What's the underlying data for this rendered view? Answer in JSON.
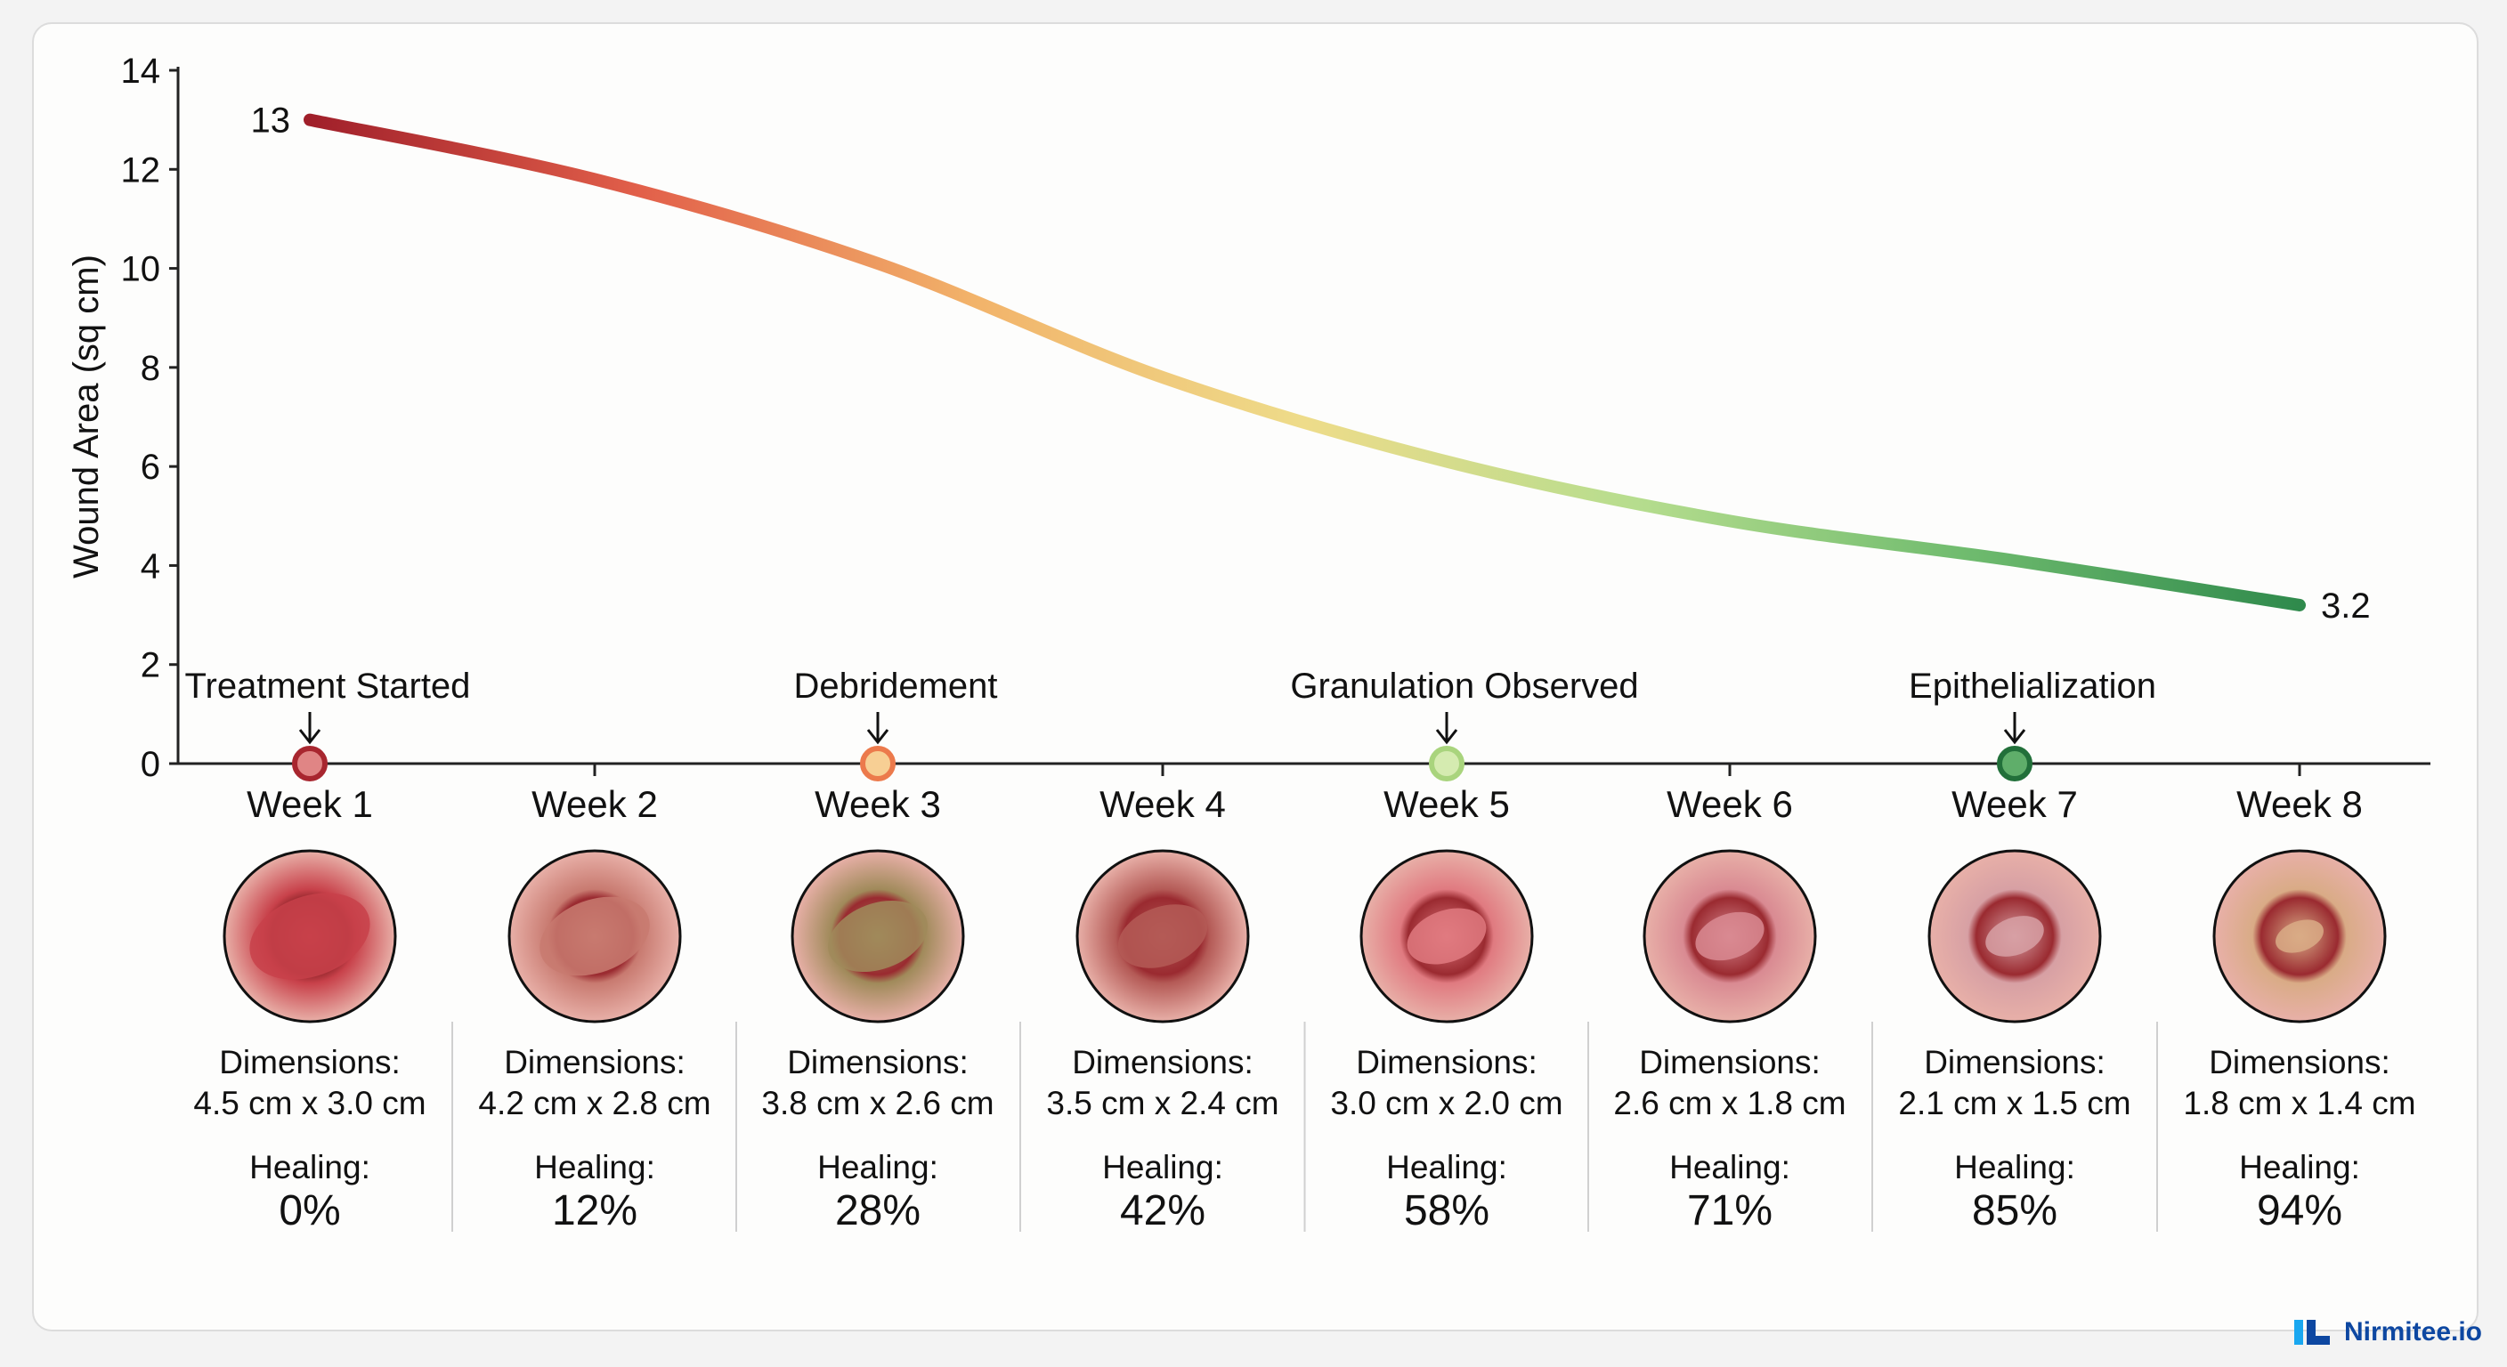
{
  "chart_data": {
    "type": "line",
    "ylabel": "Wound Area (sq cm)",
    "xlabel": "",
    "ylim": [
      0,
      14
    ],
    "yticks": [
      0,
      2,
      4,
      6,
      8,
      10,
      12,
      14
    ],
    "categories": [
      "Week 1",
      "Week 2",
      "Week 3",
      "Week 4",
      "Week 5",
      "Week 6",
      "Week 7",
      "Week 8"
    ],
    "values": [
      13,
      11.8,
      10.1,
      7.8,
      6.1,
      4.9,
      4.1,
      3.2
    ],
    "data_labels": [
      {
        "index": 0,
        "text": "13"
      },
      {
        "index": 7,
        "text": "3.2"
      }
    ],
    "gradient_colors": [
      "#a01f2a",
      "#e2604a",
      "#f2b36a",
      "#eedc8a",
      "#b6dd8e",
      "#6fbb6e",
      "#2f8a4c"
    ],
    "grid": false,
    "legend": "none",
    "annotations": [
      {
        "index": 0,
        "text": "Treatment Started",
        "marker_color": "#e08585",
        "marker_stroke": "#a8262f"
      },
      {
        "index": 2,
        "text": "Debridement",
        "marker_color": "#f7cf94",
        "marker_stroke": "#ec7a4c"
      },
      {
        "index": 4,
        "text": "Granulation Observed",
        "marker_color": "#d5ebb0",
        "marker_stroke": "#a9d47d"
      },
      {
        "index": 6,
        "text": "Epithelialization",
        "marker_color": "#5fae6a",
        "marker_stroke": "#22703a"
      }
    ],
    "details": [
      {
        "dimensions_label": "Dimensions:",
        "dimensions": "4.5 cm x 3.0 cm",
        "healing_label": "Healing:",
        "healing": "0%",
        "photo_color": "#c8414a"
      },
      {
        "dimensions_label": "Dimensions:",
        "dimensions": "4.2 cm x 2.8 cm",
        "healing_label": "Healing:",
        "healing": "12%",
        "photo_color": "#c87a70"
      },
      {
        "dimensions_label": "Dimensions:",
        "dimensions": "3.8 cm x 2.6 cm",
        "healing_label": "Healing:",
        "healing": "28%",
        "photo_color": "#a08a5a"
      },
      {
        "dimensions_label": "Dimensions:",
        "dimensions": "3.5 cm x 2.4 cm",
        "healing_label": "Healing:",
        "healing": "42%",
        "photo_color": "#b45a56"
      },
      {
        "dimensions_label": "Dimensions:",
        "dimensions": "3.0 cm x 2.0 cm",
        "healing_label": "Healing:",
        "healing": "58%",
        "photo_color": "#e07a80"
      },
      {
        "dimensions_label": "Dimensions:",
        "dimensions": "2.6 cm x 1.8 cm",
        "healing_label": "Healing:",
        "healing": "71%",
        "photo_color": "#d98a92"
      },
      {
        "dimensions_label": "Dimensions:",
        "dimensions": "2.1 cm x 1.5 cm",
        "healing_label": "Healing:",
        "healing": "85%",
        "photo_color": "#d7a0a4"
      },
      {
        "dimensions_label": "Dimensions:",
        "dimensions": "1.8 cm x 1.4 cm",
        "healing_label": "Healing:",
        "healing": "94%",
        "photo_color": "#d9ab86"
      }
    ]
  },
  "branding": {
    "name": "Nirmitee.io"
  }
}
